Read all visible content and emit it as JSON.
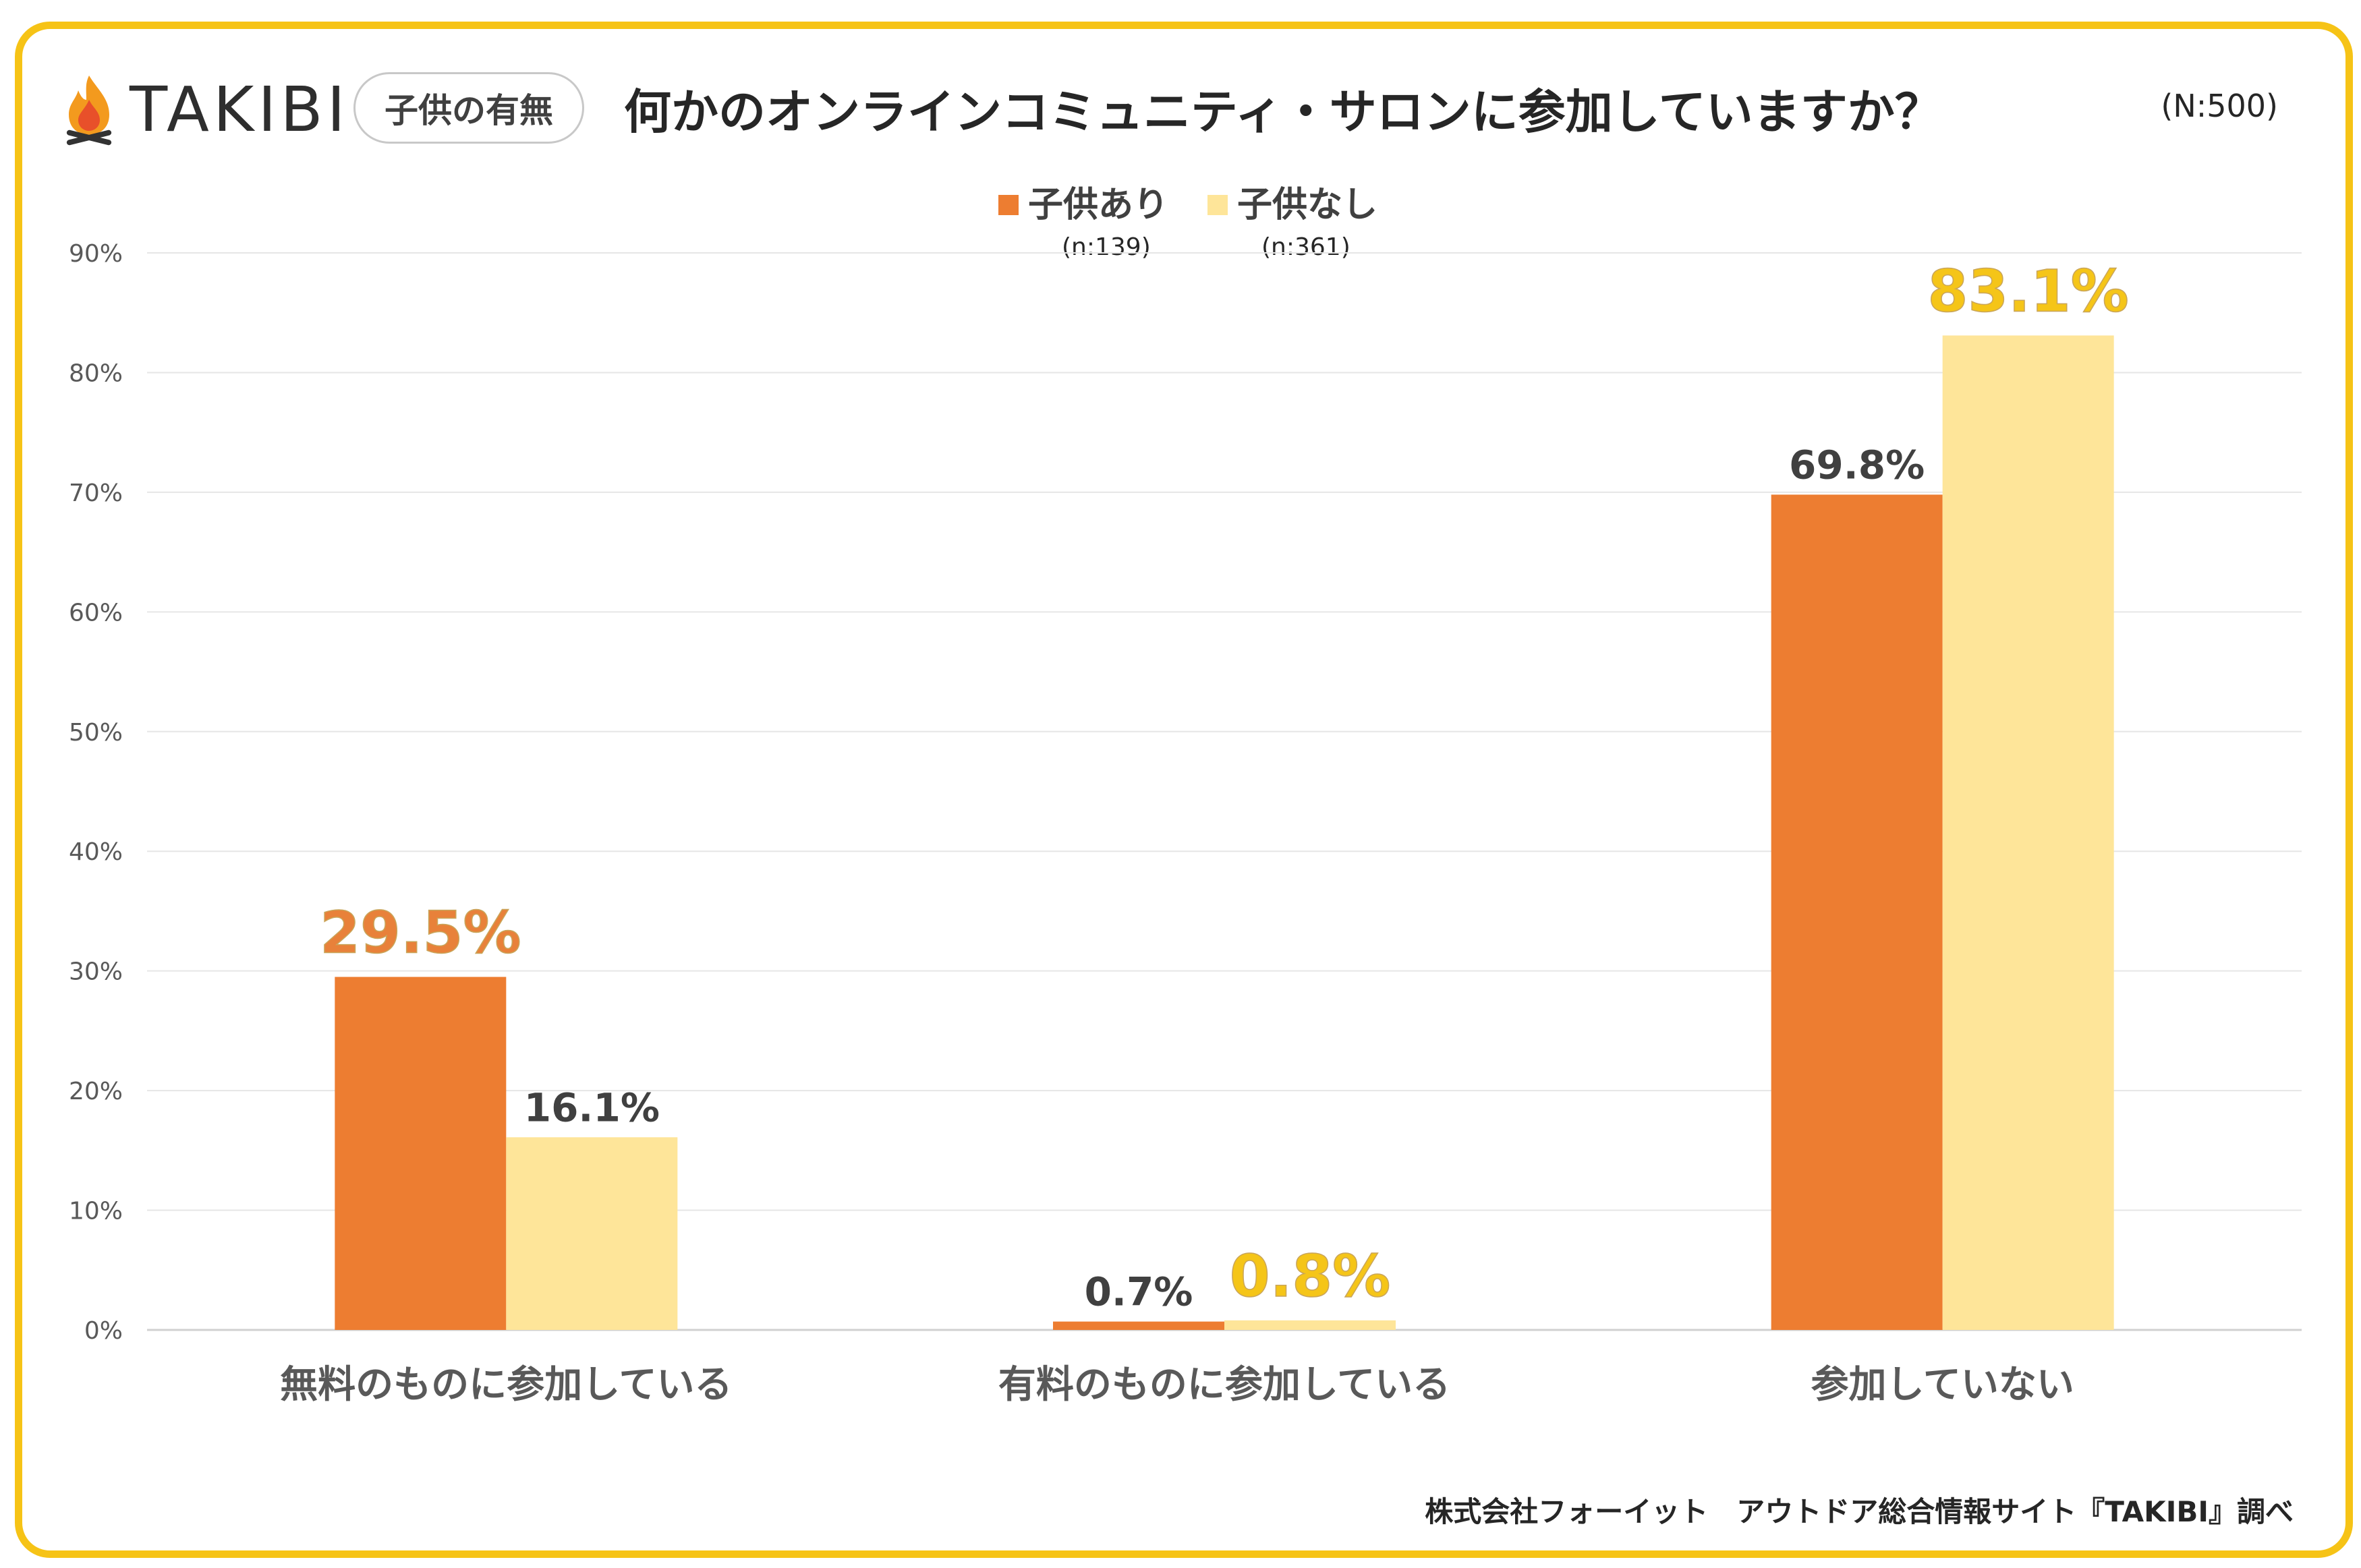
{
  "header": {
    "brand": "TAKIBI",
    "badge": "子供の有無",
    "title": "何かのオンラインコミュニティ・サロンに参加していますか？",
    "sample_size": "(N:500)"
  },
  "legend": [
    {
      "label": "子供あり",
      "n": "(n:139)",
      "color": "#ED7D31"
    },
    {
      "label": "子供なし",
      "n": "(n:361)",
      "color": "#FEE599"
    }
  ],
  "footer": "株式会社フォーイット　アウトドア総合情報サイト『TAKIBI』調べ",
  "colors": {
    "frame": "#F6C316",
    "series_a": "#ED7D31",
    "series_b": "#FEE599",
    "highlight_a": "#E8813A",
    "highlight_b": "#F5C518",
    "label_default": "#404040"
  },
  "chart_data": {
    "type": "bar",
    "title": "何かのオンラインコミュニティ・サロンに参加していますか？",
    "categories": [
      "無料のものに参加している",
      "有料のものに参加している",
      "参加していない"
    ],
    "series": [
      {
        "name": "子供あり",
        "values": [
          29.5,
          0.7,
          69.8
        ]
      },
      {
        "name": "子供なし",
        "values": [
          16.1,
          0.8,
          83.1
        ]
      }
    ],
    "value_labels": [
      [
        "29.5%",
        "0.7%",
        "69.8%"
      ],
      [
        "16.1%",
        "0.8%",
        "83.1%"
      ]
    ],
    "highlighted": [
      [
        true,
        false,
        false
      ],
      [
        false,
        true,
        true
      ]
    ],
    "ylim": [
      0,
      90
    ],
    "yticks": [
      0,
      10,
      20,
      30,
      40,
      50,
      60,
      70,
      80,
      90
    ],
    "ytick_labels": [
      "0%",
      "10%",
      "20%",
      "30%",
      "40%",
      "50%",
      "60%",
      "70%",
      "80%",
      "90%"
    ],
    "xlabel": "",
    "ylabel": "",
    "grid": true,
    "legend_position": "top-center"
  }
}
